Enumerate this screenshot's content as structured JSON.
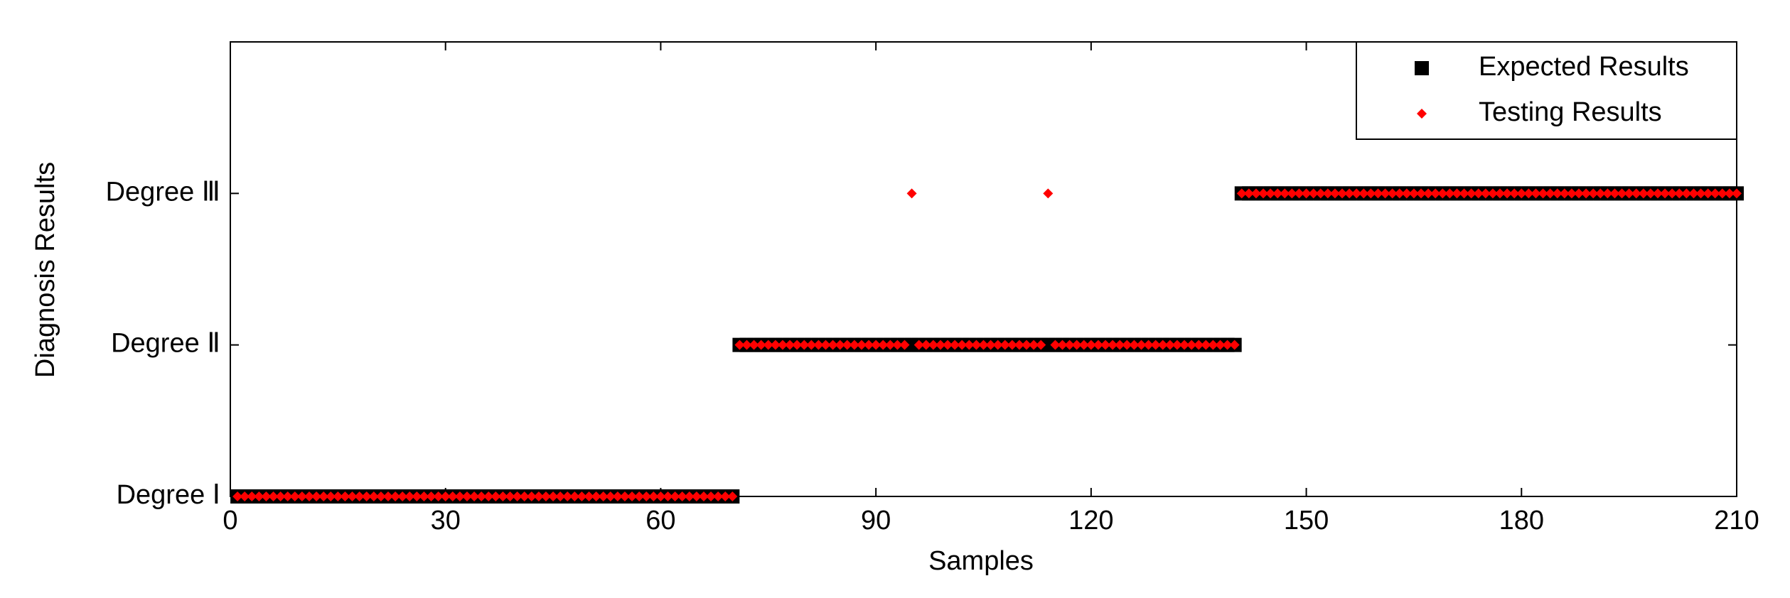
{
  "chart_data": {
    "type": "scatter",
    "xlabel": "Samples",
    "ylabel": "Diagnosis Results",
    "xlim": [
      0,
      210
    ],
    "xticks": [
      0,
      30,
      60,
      90,
      120,
      150,
      180,
      210
    ],
    "ylim": [
      1,
      4
    ],
    "yticks": [
      {
        "value": 1,
        "label": "Degree Ⅰ"
      },
      {
        "value": 2,
        "label": "Degree Ⅱ"
      },
      {
        "value": 3,
        "label": "Degree Ⅲ"
      }
    ],
    "legend": "upper right",
    "x": [
      1,
      2,
      3,
      4,
      5,
      6,
      7,
      8,
      9,
      10,
      11,
      12,
      13,
      14,
      15,
      16,
      17,
      18,
      19,
      20,
      21,
      22,
      23,
      24,
      25,
      26,
      27,
      28,
      29,
      30,
      31,
      32,
      33,
      34,
      35,
      36,
      37,
      38,
      39,
      40,
      41,
      42,
      43,
      44,
      45,
      46,
      47,
      48,
      49,
      50,
      51,
      52,
      53,
      54,
      55,
      56,
      57,
      58,
      59,
      60,
      61,
      62,
      63,
      64,
      65,
      66,
      67,
      68,
      69,
      70,
      71,
      72,
      73,
      74,
      75,
      76,
      77,
      78,
      79,
      80,
      81,
      82,
      83,
      84,
      85,
      86,
      87,
      88,
      89,
      90,
      91,
      92,
      93,
      94,
      95,
      96,
      97,
      98,
      99,
      100,
      101,
      102,
      103,
      104,
      105,
      106,
      107,
      108,
      109,
      110,
      111,
      112,
      113,
      114,
      115,
      116,
      117,
      118,
      119,
      120,
      121,
      122,
      123,
      124,
      125,
      126,
      127,
      128,
      129,
      130,
      131,
      132,
      133,
      134,
      135,
      136,
      137,
      138,
      139,
      140,
      141,
      142,
      143,
      144,
      145,
      146,
      147,
      148,
      149,
      150,
      151,
      152,
      153,
      154,
      155,
      156,
      157,
      158,
      159,
      160,
      161,
      162,
      163,
      164,
      165,
      166,
      167,
      168,
      169,
      170,
      171,
      172,
      173,
      174,
      175,
      176,
      177,
      178,
      179,
      180,
      181,
      182,
      183,
      184,
      185,
      186,
      187,
      188,
      189,
      190,
      191,
      192,
      193,
      194,
      195,
      196,
      197,
      198,
      199,
      200,
      201,
      202,
      203,
      204,
      205,
      206,
      207,
      208,
      209,
      210
    ],
    "series": [
      {
        "name": "Expected Results",
        "color": "#000000",
        "marker": "square",
        "values": [
          1,
          1,
          1,
          1,
          1,
          1,
          1,
          1,
          1,
          1,
          1,
          1,
          1,
          1,
          1,
          1,
          1,
          1,
          1,
          1,
          1,
          1,
          1,
          1,
          1,
          1,
          1,
          1,
          1,
          1,
          1,
          1,
          1,
          1,
          1,
          1,
          1,
          1,
          1,
          1,
          1,
          1,
          1,
          1,
          1,
          1,
          1,
          1,
          1,
          1,
          1,
          1,
          1,
          1,
          1,
          1,
          1,
          1,
          1,
          1,
          1,
          1,
          1,
          1,
          1,
          1,
          1,
          1,
          1,
          1,
          2,
          2,
          2,
          2,
          2,
          2,
          2,
          2,
          2,
          2,
          2,
          2,
          2,
          2,
          2,
          2,
          2,
          2,
          2,
          2,
          2,
          2,
          2,
          2,
          2,
          2,
          2,
          2,
          2,
          2,
          2,
          2,
          2,
          2,
          2,
          2,
          2,
          2,
          2,
          2,
          2,
          2,
          2,
          2,
          2,
          2,
          2,
          2,
          2,
          2,
          2,
          2,
          2,
          2,
          2,
          2,
          2,
          2,
          2,
          2,
          2,
          2,
          2,
          2,
          2,
          2,
          2,
          2,
          2,
          2,
          3,
          3,
          3,
          3,
          3,
          3,
          3,
          3,
          3,
          3,
          3,
          3,
          3,
          3,
          3,
          3,
          3,
          3,
          3,
          3,
          3,
          3,
          3,
          3,
          3,
          3,
          3,
          3,
          3,
          3,
          3,
          3,
          3,
          3,
          3,
          3,
          3,
          3,
          3,
          3,
          3,
          3,
          3,
          3,
          3,
          3,
          3,
          3,
          3,
          3,
          3,
          3,
          3,
          3,
          3,
          3,
          3,
          3,
          3,
          3,
          3,
          3,
          3,
          3,
          3,
          3,
          3,
          3,
          3,
          3
        ]
      },
      {
        "name": "Testing Results",
        "color": "#ff0000",
        "marker": "diamond",
        "values": [
          1,
          1,
          1,
          1,
          1,
          1,
          1,
          1,
          1,
          1,
          1,
          1,
          1,
          1,
          1,
          1,
          1,
          1,
          1,
          1,
          1,
          1,
          1,
          1,
          1,
          1,
          1,
          1,
          1,
          1,
          1,
          1,
          1,
          1,
          1,
          1,
          1,
          1,
          1,
          1,
          1,
          1,
          1,
          1,
          1,
          1,
          1,
          1,
          1,
          1,
          1,
          1,
          1,
          1,
          1,
          1,
          1,
          1,
          1,
          1,
          1,
          1,
          1,
          1,
          1,
          1,
          1,
          1,
          1,
          1,
          2,
          2,
          2,
          2,
          2,
          2,
          2,
          2,
          2,
          2,
          2,
          2,
          2,
          2,
          2,
          2,
          2,
          2,
          2,
          2,
          2,
          2,
          2,
          2,
          3,
          2,
          2,
          2,
          2,
          2,
          2,
          2,
          2,
          2,
          2,
          2,
          2,
          2,
          2,
          2,
          2,
          2,
          2,
          3,
          2,
          2,
          2,
          2,
          2,
          2,
          2,
          2,
          2,
          2,
          2,
          2,
          2,
          2,
          2,
          2,
          2,
          2,
          2,
          2,
          2,
          2,
          2,
          2,
          2,
          2,
          3,
          3,
          3,
          3,
          3,
          3,
          3,
          3,
          3,
          3,
          3,
          3,
          3,
          3,
          3,
          3,
          3,
          3,
          3,
          3,
          3,
          3,
          3,
          3,
          3,
          3,
          3,
          3,
          3,
          3,
          3,
          3,
          3,
          3,
          3,
          3,
          3,
          3,
          3,
          3,
          3,
          3,
          3,
          3,
          3,
          3,
          3,
          3,
          3,
          3,
          3,
          3,
          3,
          3,
          3,
          3,
          3,
          3,
          3,
          3,
          3,
          3,
          3,
          3,
          3,
          3,
          3,
          3,
          3,
          3
        ]
      }
    ]
  }
}
